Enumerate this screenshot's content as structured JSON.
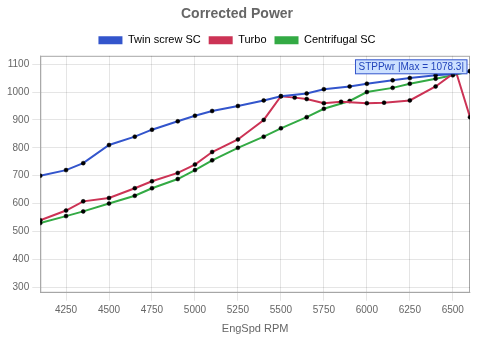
{
  "chart_data": {
    "type": "line",
    "title": "Corrected Power",
    "x_label": "EngSpd RPM",
    "annotation": "STPPwr |Max = 1078.3|",
    "xlim": [
      4100,
      6600
    ],
    "ylim": [
      280,
      1130
    ],
    "xticks": [
      4250,
      4500,
      4750,
      5000,
      5250,
      5500,
      5750,
      6000,
      6250,
      6500
    ],
    "yticks": [
      300,
      400,
      500,
      600,
      700,
      800,
      900,
      1000,
      1100
    ],
    "grid": true,
    "legend": "top",
    "series": [
      {
        "name": "Twin screw SC",
        "color": "#3355cc",
        "marker": "circle",
        "x": [
          4100,
          4250,
          4350,
          4500,
          4650,
          4750,
          4900,
          5000,
          5100,
          5250,
          5400,
          5500,
          5650,
          5750,
          5900,
          6000,
          6150,
          6250,
          6400,
          6500,
          6600
        ],
        "values": [
          700,
          720,
          745,
          810,
          840,
          865,
          895,
          915,
          932,
          950,
          970,
          985,
          995,
          1010,
          1020,
          1030,
          1042,
          1050,
          1060,
          1065,
          1075
        ]
      },
      {
        "name": "Turbo",
        "color": "#cc3355",
        "marker": "circle",
        "x": [
          4100,
          4250,
          4350,
          4500,
          4650,
          4750,
          4900,
          5000,
          5100,
          5250,
          5400,
          5500,
          5580,
          5650,
          5750,
          5850,
          6000,
          6100,
          6250,
          6400,
          6500,
          6520,
          6600
        ],
        "values": [
          540,
          575,
          608,
          620,
          655,
          680,
          710,
          740,
          785,
          830,
          900,
          985,
          980,
          975,
          960,
          965,
          960,
          962,
          970,
          1020,
          1065,
          1070,
          910
        ]
      },
      {
        "name": "Centrifugal SC",
        "color": "#33aa44",
        "marker": "circle",
        "x": [
          4100,
          4250,
          4350,
          4500,
          4650,
          4750,
          4900,
          5000,
          5100,
          5250,
          5400,
          5500,
          5650,
          5750,
          5900,
          6000,
          6150,
          6250,
          6400,
          6500,
          6600
        ],
        "values": [
          530,
          555,
          572,
          600,
          628,
          655,
          688,
          720,
          755,
          800,
          840,
          870,
          910,
          940,
          968,
          1000,
          1015,
          1030,
          1048,
          1060,
          1075
        ]
      }
    ]
  }
}
